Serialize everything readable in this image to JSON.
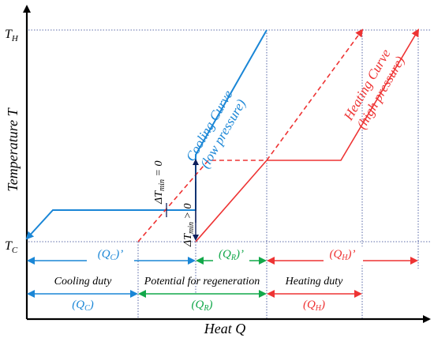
{
  "colors": {
    "cooling": "#1a86d6",
    "heating": "#ee3333",
    "regen": "#12a84a",
    "axis": "#000000",
    "guide": "#2b3f8f"
  },
  "axes": {
    "y_label": "Temperature T",
    "x_label": "Heat Q",
    "t_h_main": "T",
    "t_h_sub": "H",
    "t_c_main": "T",
    "t_c_sub": "C"
  },
  "curves": {
    "cooling_line1": "Cooling Curve",
    "cooling_line2": "(low pressure)",
    "heating_line1": "Heating Curve",
    "heating_line2": "(high pressure)"
  },
  "delta": {
    "zero_prefix": "ΔT",
    "zero_sub": "min",
    "zero_suffix": " = 0",
    "pos_prefix": "ΔT",
    "pos_sub": "min",
    "pos_suffix": " > 0"
  },
  "segments_primed": [
    {
      "main": "(Q",
      "sub": "C",
      "suffix": ")’"
    },
    {
      "main": "(Q",
      "sub": "R",
      "suffix": ")’"
    },
    {
      "main": "(Q",
      "sub": "H",
      "suffix": ")’"
    }
  ],
  "duties": {
    "cooling": "Cooling duty",
    "regen": "Potential for regeneration",
    "heating": "Heating duty"
  },
  "segments": [
    {
      "main": "(Q",
      "sub": "C",
      "suffix": ")"
    },
    {
      "main": "(Q",
      "sub": "R",
      "suffix": ")"
    },
    {
      "main": "(Q",
      "sub": "H",
      "suffix": ")"
    }
  ]
}
